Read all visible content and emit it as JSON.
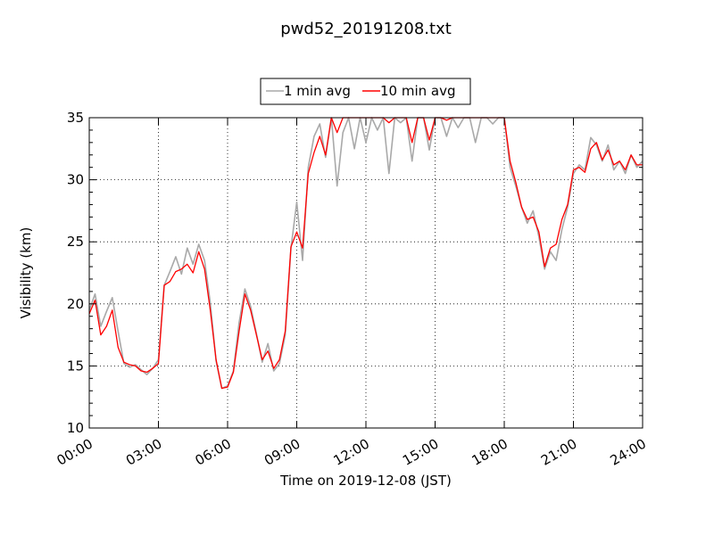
{
  "chart_data": {
    "type": "line",
    "title": "pwd52_20191208.txt",
    "xlabel": "Time on 2019-12-08 (JST)",
    "ylabel": "Visibility (km)",
    "xlim": [
      "00:00",
      "24:00"
    ],
    "ylim": [
      10,
      35
    ],
    "x_ticks": [
      "00:00",
      "03:00",
      "06:00",
      "09:00",
      "12:00",
      "15:00",
      "18:00",
      "21:00",
      "24:00"
    ],
    "y_ticks": [
      10,
      15,
      20,
      25,
      30,
      35
    ],
    "grid": true,
    "legend_position": "top-center",
    "series": [
      {
        "name": "1 min avg",
        "color": "#a9a9a9",
        "data": [
          [
            "00:00",
            19.5
          ],
          [
            "00:15",
            20.8
          ],
          [
            "00:30",
            18.2
          ],
          [
            "00:45",
            19.4
          ],
          [
            "01:00",
            20.5
          ],
          [
            "01:15",
            17.8
          ],
          [
            "01:30",
            15.2
          ],
          [
            "01:45",
            14.9
          ],
          [
            "02:00",
            15.1
          ],
          [
            "02:15",
            14.7
          ],
          [
            "02:30",
            14.3
          ],
          [
            "02:45",
            14.8
          ],
          [
            "03:00",
            15.5
          ],
          [
            "03:15",
            21.5
          ],
          [
            "03:30",
            22.6
          ],
          [
            "03:45",
            23.8
          ],
          [
            "04:00",
            22.4
          ],
          [
            "04:15",
            24.5
          ],
          [
            "04:30",
            23.2
          ],
          [
            "04:45",
            24.8
          ],
          [
            "05:00",
            23.5
          ],
          [
            "05:15",
            20.1
          ],
          [
            "05:30",
            15.4
          ],
          [
            "05:45",
            13.2
          ],
          [
            "06:00",
            13.4
          ],
          [
            "06:15",
            14.6
          ],
          [
            "06:30",
            18.5
          ],
          [
            "06:45",
            21.2
          ],
          [
            "07:00",
            19.8
          ],
          [
            "07:15",
            17.6
          ],
          [
            "07:30",
            15.3
          ],
          [
            "07:45",
            16.8
          ],
          [
            "08:00",
            14.6
          ],
          [
            "08:15",
            15.2
          ],
          [
            "08:30",
            17.5
          ],
          [
            "08:45",
            24.5
          ],
          [
            "09:00",
            28.2
          ],
          [
            "09:15",
            23.5
          ],
          [
            "09:30",
            31.0
          ],
          [
            "09:45",
            33.5
          ],
          [
            "10:00",
            34.5
          ],
          [
            "10:15",
            31.8
          ],
          [
            "10:30",
            35.0
          ],
          [
            "10:45",
            29.5
          ],
          [
            "11:00",
            33.8
          ],
          [
            "11:15",
            35.0
          ],
          [
            "11:30",
            32.5
          ],
          [
            "11:45",
            35.0
          ],
          [
            "12:00",
            33.0
          ],
          [
            "12:15",
            35.0
          ],
          [
            "12:30",
            34.0
          ],
          [
            "12:45",
            35.0
          ],
          [
            "13:00",
            30.5
          ],
          [
            "13:15",
            35.0
          ],
          [
            "13:30",
            34.6
          ],
          [
            "13:45",
            35.0
          ],
          [
            "14:00",
            31.5
          ],
          [
            "14:15",
            35.0
          ],
          [
            "14:30",
            35.0
          ],
          [
            "14:45",
            32.4
          ],
          [
            "15:00",
            35.0
          ],
          [
            "15:15",
            35.0
          ],
          [
            "15:30",
            33.5
          ],
          [
            "15:45",
            35.0
          ],
          [
            "16:00",
            34.2
          ],
          [
            "16:15",
            35.0
          ],
          [
            "16:30",
            35.0
          ],
          [
            "16:45",
            33.0
          ],
          [
            "17:00",
            35.0
          ],
          [
            "17:15",
            35.0
          ],
          [
            "17:30",
            34.5
          ],
          [
            "17:45",
            35.0
          ],
          [
            "18:00",
            35.0
          ],
          [
            "18:15",
            31.0
          ],
          [
            "18:30",
            29.5
          ],
          [
            "18:45",
            27.8
          ],
          [
            "19:00",
            26.5
          ],
          [
            "19:15",
            27.5
          ],
          [
            "19:30",
            25.4
          ],
          [
            "19:45",
            22.8
          ],
          [
            "20:00",
            24.2
          ],
          [
            "20:15",
            23.5
          ],
          [
            "20:30",
            26.0
          ],
          [
            "20:45",
            27.8
          ],
          [
            "21:00",
            30.5
          ],
          [
            "21:15",
            31.2
          ],
          [
            "21:30",
            30.8
          ],
          [
            "21:45",
            33.4
          ],
          [
            "22:00",
            32.8
          ],
          [
            "22:15",
            31.5
          ],
          [
            "22:30",
            32.8
          ],
          [
            "22:45",
            30.8
          ],
          [
            "23:00",
            31.5
          ],
          [
            "23:15",
            30.5
          ],
          [
            "23:30",
            32.0
          ],
          [
            "23:45",
            31.0
          ],
          [
            "24:00",
            31.5
          ]
        ]
      },
      {
        "name": "10 min avg",
        "color": "#ff0000",
        "data": [
          [
            "00:00",
            19.2
          ],
          [
            "00:15",
            20.3
          ],
          [
            "00:30",
            17.5
          ],
          [
            "00:45",
            18.2
          ],
          [
            "01:00",
            19.5
          ],
          [
            "01:15",
            16.5
          ],
          [
            "01:30",
            15.3
          ],
          [
            "01:45",
            15.1
          ],
          [
            "02:00",
            15.0
          ],
          [
            "02:15",
            14.6
          ],
          [
            "02:30",
            14.5
          ],
          [
            "02:45",
            14.8
          ],
          [
            "03:00",
            15.2
          ],
          [
            "03:15",
            21.5
          ],
          [
            "03:30",
            21.8
          ],
          [
            "03:45",
            22.6
          ],
          [
            "04:00",
            22.8
          ],
          [
            "04:15",
            23.2
          ],
          [
            "04:30",
            22.5
          ],
          [
            "04:45",
            24.2
          ],
          [
            "05:00",
            22.8
          ],
          [
            "05:15",
            19.5
          ],
          [
            "05:30",
            15.5
          ],
          [
            "05:45",
            13.2
          ],
          [
            "06:00",
            13.3
          ],
          [
            "06:15",
            14.5
          ],
          [
            "06:30",
            17.8
          ],
          [
            "06:45",
            20.8
          ],
          [
            "07:00",
            19.5
          ],
          [
            "07:15",
            17.5
          ],
          [
            "07:30",
            15.5
          ],
          [
            "07:45",
            16.2
          ],
          [
            "08:00",
            14.8
          ],
          [
            "08:15",
            15.5
          ],
          [
            "08:30",
            17.8
          ],
          [
            "08:45",
            24.6
          ],
          [
            "09:00",
            25.8
          ],
          [
            "09:15",
            24.5
          ],
          [
            "09:30",
            30.5
          ],
          [
            "09:45",
            32.2
          ],
          [
            "10:00",
            33.5
          ],
          [
            "10:15",
            32.0
          ],
          [
            "10:30",
            35.0
          ],
          [
            "10:45",
            33.8
          ],
          [
            "11:00",
            35.0
          ],
          [
            "11:15",
            35.0
          ],
          [
            "11:30",
            35.0
          ],
          [
            "11:45",
            35.0
          ],
          [
            "12:00",
            35.0
          ],
          [
            "12:15",
            35.0
          ],
          [
            "12:30",
            35.0
          ],
          [
            "12:45",
            35.0
          ],
          [
            "13:00",
            34.6
          ],
          [
            "13:15",
            35.0
          ],
          [
            "13:30",
            35.0
          ],
          [
            "13:45",
            35.0
          ],
          [
            "14:00",
            33.0
          ],
          [
            "14:15",
            35.0
          ],
          [
            "14:30",
            35.0
          ],
          [
            "14:45",
            33.2
          ],
          [
            "15:00",
            35.0
          ],
          [
            "15:15",
            35.0
          ],
          [
            "15:30",
            34.8
          ],
          [
            "15:45",
            35.0
          ],
          [
            "16:00",
            35.0
          ],
          [
            "16:15",
            35.0
          ],
          [
            "16:30",
            35.0
          ],
          [
            "16:45",
            35.0
          ],
          [
            "17:00",
            35.0
          ],
          [
            "17:15",
            35.0
          ],
          [
            "17:30",
            35.0
          ],
          [
            "17:45",
            35.0
          ],
          [
            "18:00",
            35.0
          ],
          [
            "18:15",
            31.5
          ],
          [
            "18:30",
            29.8
          ],
          [
            "18:45",
            27.8
          ],
          [
            "19:00",
            26.8
          ],
          [
            "19:15",
            27.0
          ],
          [
            "19:30",
            25.8
          ],
          [
            "19:45",
            23.0
          ],
          [
            "20:00",
            24.5
          ],
          [
            "20:15",
            24.8
          ],
          [
            "20:30",
            26.8
          ],
          [
            "20:45",
            28.0
          ],
          [
            "21:00",
            30.8
          ],
          [
            "21:15",
            31.0
          ],
          [
            "21:30",
            30.6
          ],
          [
            "21:45",
            32.5
          ],
          [
            "22:00",
            33.0
          ],
          [
            "22:15",
            31.6
          ],
          [
            "22:30",
            32.4
          ],
          [
            "22:45",
            31.2
          ],
          [
            "23:00",
            31.5
          ],
          [
            "23:15",
            30.8
          ],
          [
            "23:30",
            32.0
          ],
          [
            "23:45",
            31.2
          ],
          [
            "24:00",
            31.2
          ]
        ]
      }
    ]
  }
}
